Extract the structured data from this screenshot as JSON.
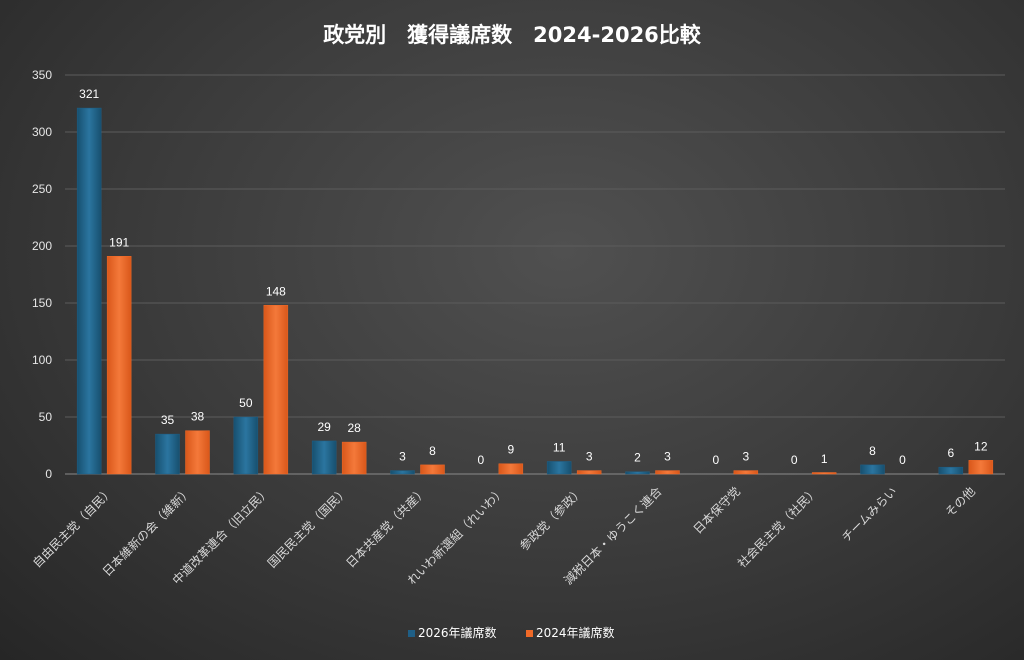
{
  "chart_data": {
    "type": "bar",
    "title": "政党別　獲得議席数　2024-2026比較",
    "categories": [
      "自由民主党（自民）",
      "日本維新の会（維新）",
      "中道改革連合（旧立民）",
      "国民民主党（国民）",
      "日本共産党（共産）",
      "れいわ新選組（れいわ）",
      "参政党（参政）",
      "減税日本・ゆうこく連合",
      "日本保守党",
      "社会民主党（社民）",
      "チームみらい",
      "その他"
    ],
    "series": [
      {
        "name": "2026年議席数",
        "color": "#1f5f86",
        "values": [
          321,
          35,
          50,
          29,
          3,
          0,
          11,
          2,
          0,
          0,
          8,
          6
        ]
      },
      {
        "name": "2024年議席数",
        "color": "#f06a28",
        "values": [
          191,
          38,
          148,
          28,
          8,
          9,
          3,
          3,
          3,
          1,
          0,
          12
        ]
      }
    ],
    "y_ticks": [
      "0",
      "50",
      "100",
      "150",
      "200",
      "250",
      "300",
      "350"
    ],
    "ylim": [
      0,
      350
    ],
    "grid": true,
    "legend_position": "bottom",
    "xlabel": "",
    "ylabel": ""
  }
}
